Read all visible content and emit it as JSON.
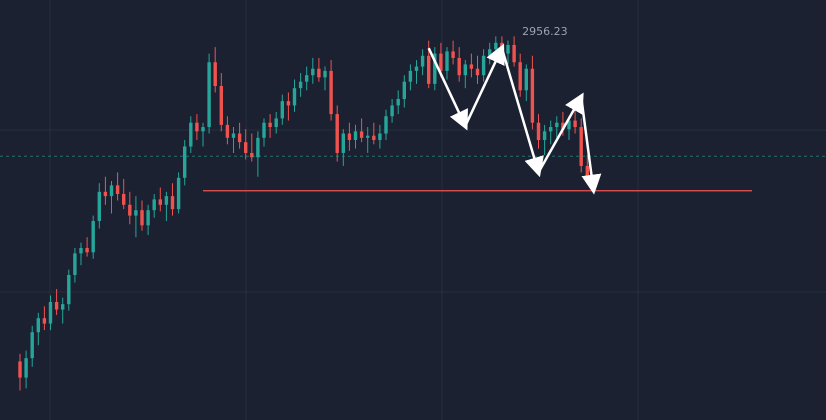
{
  "chart_data": {
    "type": "candlestick",
    "title": "",
    "annotations": {
      "high_label": "2956.23"
    },
    "grid": "on",
    "colors": {
      "background": "#1b2130",
      "grid": "#263041",
      "up": "#26a69a",
      "down": "#ef5350",
      "support_line": "#ef5350",
      "arrow": "#ffffff",
      "last_price_line": "#26a69a"
    },
    "candles": [
      [
        2655,
        2662,
        2628,
        2640
      ],
      [
        2640,
        2665,
        2630,
        2658
      ],
      [
        2658,
        2688,
        2650,
        2682
      ],
      [
        2682,
        2700,
        2670,
        2695
      ],
      [
        2695,
        2706,
        2684,
        2690
      ],
      [
        2690,
        2716,
        2684,
        2710
      ],
      [
        2710,
        2722,
        2698,
        2703
      ],
      [
        2703,
        2714,
        2690,
        2708
      ],
      [
        2708,
        2740,
        2702,
        2735
      ],
      [
        2735,
        2760,
        2728,
        2755
      ],
      [
        2755,
        2765,
        2744,
        2760
      ],
      [
        2760,
        2770,
        2752,
        2756
      ],
      [
        2756,
        2790,
        2750,
        2785
      ],
      [
        2785,
        2820,
        2778,
        2812
      ],
      [
        2812,
        2826,
        2800,
        2808
      ],
      [
        2808,
        2822,
        2792,
        2818
      ],
      [
        2818,
        2830,
        2804,
        2810
      ],
      [
        2810,
        2824,
        2796,
        2800
      ],
      [
        2800,
        2812,
        2782,
        2790
      ],
      [
        2790,
        2808,
        2770,
        2795
      ],
      [
        2795,
        2804,
        2776,
        2781
      ],
      [
        2781,
        2800,
        2772,
        2795
      ],
      [
        2795,
        2810,
        2788,
        2805
      ],
      [
        2805,
        2816,
        2794,
        2800
      ],
      [
        2800,
        2812,
        2785,
        2808
      ],
      [
        2808,
        2820,
        2790,
        2796
      ],
      [
        2796,
        2830,
        2792,
        2825
      ],
      [
        2825,
        2860,
        2818,
        2854
      ],
      [
        2854,
        2882,
        2848,
        2876
      ],
      [
        2876,
        2884,
        2860,
        2868
      ],
      [
        2868,
        2876,
        2854,
        2872
      ],
      [
        2872,
        2940,
        2866,
        2932
      ],
      [
        2932,
        2946,
        2904,
        2910
      ],
      [
        2910,
        2922,
        2868,
        2874
      ],
      [
        2874,
        2882,
        2856,
        2862
      ],
      [
        2862,
        2872,
        2848,
        2866
      ],
      [
        2866,
        2876,
        2852,
        2858
      ],
      [
        2858,
        2870,
        2842,
        2848
      ],
      [
        2848,
        2866,
        2840,
        2844
      ],
      [
        2844,
        2868,
        2826,
        2862
      ],
      [
        2862,
        2880,
        2854,
        2876
      ],
      [
        2876,
        2884,
        2862,
        2872
      ],
      [
        2872,
        2886,
        2866,
        2880
      ],
      [
        2880,
        2902,
        2874,
        2896
      ],
      [
        2896,
        2904,
        2878,
        2892
      ],
      [
        2892,
        2916,
        2886,
        2908
      ],
      [
        2908,
        2922,
        2900,
        2914
      ],
      [
        2914,
        2928,
        2906,
        2920
      ],
      [
        2920,
        2936,
        2912,
        2926
      ],
      [
        2926,
        2936,
        2914,
        2918
      ],
      [
        2918,
        2928,
        2906,
        2924
      ],
      [
        2924,
        2934,
        2878,
        2884
      ],
      [
        2884,
        2892,
        2840,
        2848
      ],
      [
        2848,
        2870,
        2836,
        2866
      ],
      [
        2866,
        2876,
        2850,
        2860
      ],
      [
        2860,
        2874,
        2852,
        2868
      ],
      [
        2868,
        2880,
        2858,
        2862
      ],
      [
        2862,
        2872,
        2848,
        2864
      ],
      [
        2864,
        2876,
        2856,
        2860
      ],
      [
        2860,
        2874,
        2852,
        2866
      ],
      [
        2866,
        2888,
        2860,
        2882
      ],
      [
        2882,
        2898,
        2876,
        2892
      ],
      [
        2892,
        2906,
        2884,
        2898
      ],
      [
        2898,
        2920,
        2890,
        2914
      ],
      [
        2914,
        2930,
        2906,
        2924
      ],
      [
        2924,
        2934,
        2912,
        2928
      ],
      [
        2928,
        2944,
        2920,
        2938
      ],
      [
        2938,
        2952,
        2908,
        2912
      ],
      [
        2912,
        2946,
        2906,
        2940
      ],
      [
        2940,
        2950,
        2918,
        2924
      ],
      [
        2924,
        2946,
        2916,
        2942
      ],
      [
        2942,
        2952,
        2930,
        2936
      ],
      [
        2936,
        2946,
        2914,
        2920
      ],
      [
        2920,
        2934,
        2908,
        2930
      ],
      [
        2930,
        2940,
        2918,
        2926
      ],
      [
        2926,
        2938,
        2912,
        2920
      ],
      [
        2920,
        2944,
        2914,
        2938
      ],
      [
        2938,
        2950,
        2930,
        2944
      ],
      [
        2944,
        2956,
        2936,
        2950
      ],
      [
        2950,
        2956,
        2934,
        2940
      ],
      [
        2940,
        2952,
        2930,
        2948
      ],
      [
        2948,
        2956,
        2928,
        2932
      ],
      [
        2932,
        2940,
        2900,
        2906
      ],
      [
        2906,
        2930,
        2896,
        2926
      ],
      [
        2926,
        2938,
        2870,
        2876
      ],
      [
        2876,
        2884,
        2852,
        2860
      ],
      [
        2860,
        2874,
        2846,
        2868
      ],
      [
        2868,
        2878,
        2856,
        2872
      ],
      [
        2872,
        2882,
        2858,
        2876
      ],
      [
        2876,
        2886,
        2864,
        2870
      ],
      [
        2870,
        2882,
        2860,
        2878
      ],
      [
        2878,
        2888,
        2866,
        2872
      ],
      [
        2872,
        2880,
        2830,
        2836
      ],
      [
        2836,
        2846,
        2822,
        2826
      ]
    ],
    "support_level": 2813,
    "last_price_level": 2845
  }
}
